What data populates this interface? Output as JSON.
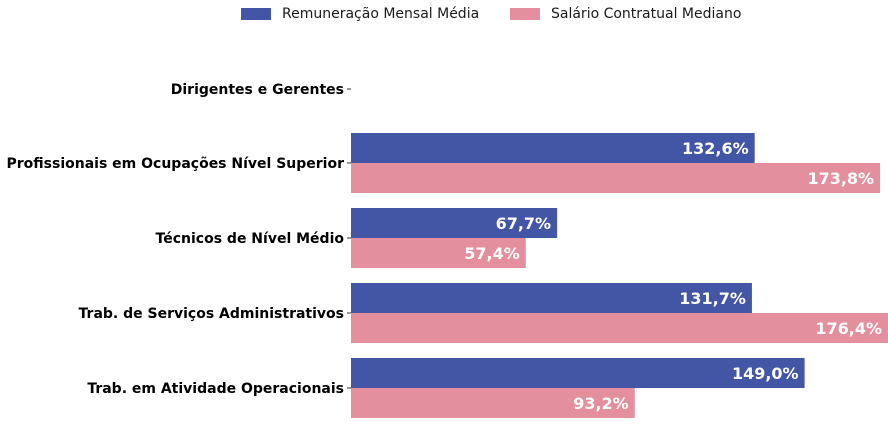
{
  "chart_data": {
    "type": "bar",
    "orientation": "horizontal",
    "categories": [
      "Dirigentes e Gerentes",
      "Profissionais em Ocupações Nível Superior",
      "Técnicos de Nível Médio",
      "Trab. de Serviços Administrativos",
      "Trab. em Atividade Operacionais"
    ],
    "series": [
      {
        "name": "Remuneração Mensal Média",
        "color": "#4355a5",
        "values": [
          null,
          132.6,
          67.7,
          131.7,
          149.0
        ],
        "labels": [
          "",
          "132,6%",
          "67,7%",
          "131,7%",
          "149,0%"
        ]
      },
      {
        "name": "Salário Contratual Mediano",
        "color": "#e38f9d",
        "values": [
          null,
          173.8,
          57.4,
          176.4,
          93.2
        ],
        "labels": [
          "",
          "173,8%",
          "57,4%",
          "176,4%",
          "93,2%"
        ]
      }
    ],
    "xlim": [
      0,
      176.4
    ],
    "legend_position": "top-center",
    "grid": false,
    "title": "",
    "xlabel": "",
    "ylabel": ""
  }
}
